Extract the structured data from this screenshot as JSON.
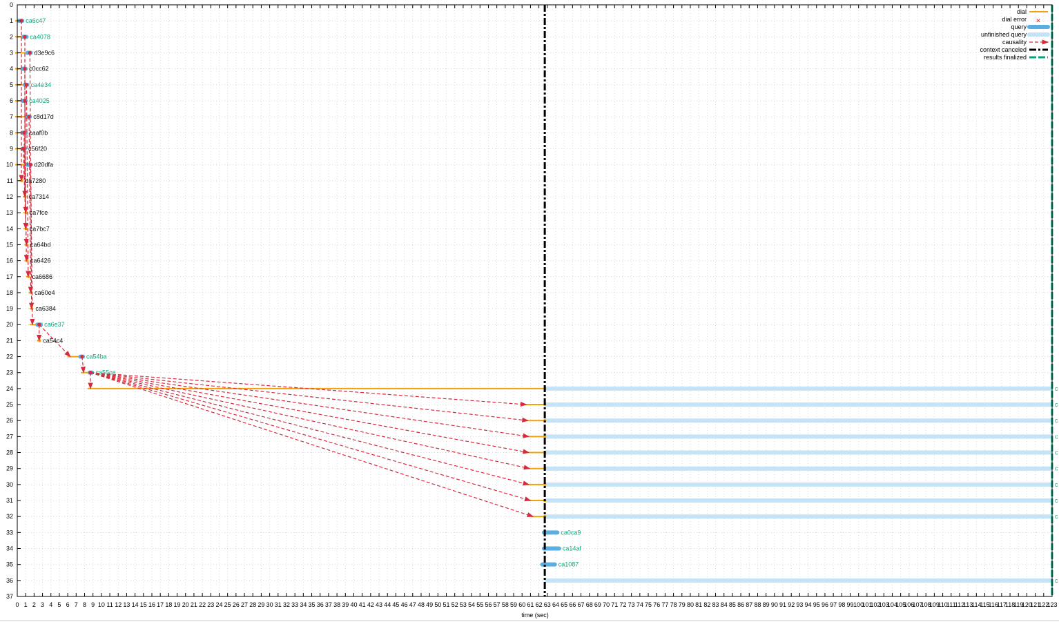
{
  "chart_data": {
    "type": "timeline",
    "xlabel": "time (sec)",
    "ylabel": "",
    "xlim": [
      0,
      123
    ],
    "ylim": [
      0,
      37
    ],
    "y_reversed": true,
    "grid": true,
    "legend_placement": "top-right",
    "legend": [
      {
        "key": "dial",
        "label": "dial"
      },
      {
        "key": "dial_error",
        "label": "dial error"
      },
      {
        "key": "query",
        "label": "query"
      },
      {
        "key": "unfinished",
        "label": "unfinished query"
      },
      {
        "key": "causality",
        "label": "causality"
      },
      {
        "key": "canceled",
        "label": "context canceled"
      },
      {
        "key": "finalized",
        "label": "results finalized"
      }
    ],
    "colors": {
      "dial": "#f0a30a",
      "dial_error": "#e8281e",
      "query": "#5aafe0",
      "unfinished": "#c5e3f6",
      "causality": "#d52b3c",
      "canceled": "#000000",
      "finalized": "#00a67e",
      "label_ok": "#12a67f",
      "label_plain": "#111111"
    },
    "context_canceled_at": 62.7,
    "results_finalized_at": 123,
    "rows": [
      {
        "row": 1,
        "label": "ca6c47",
        "ok": true,
        "dial": [
          0,
          0.4
        ],
        "query": [
          0.2,
          0.6
        ]
      },
      {
        "row": 2,
        "label": "ca4078",
        "ok": true,
        "dial": [
          0,
          0.8
        ],
        "query": [
          0.7,
          1.1
        ]
      },
      {
        "row": 3,
        "label": "d3e9c6",
        "ok": false,
        "dial": [
          0,
          1.2
        ],
        "query": [
          1.2,
          1.6
        ]
      },
      {
        "row": 4,
        "label": "c0cc62",
        "ok": false,
        "dial": [
          0,
          0.7
        ],
        "query": [
          0.6,
          1.0
        ]
      },
      {
        "row": 5,
        "label": "ca4e34",
        "ok": true,
        "dial": [
          0,
          1.0
        ],
        "query": [
          0.9,
          1.2
        ]
      },
      {
        "row": 6,
        "label": "ca4025",
        "ok": true,
        "dial": [
          0,
          0.7
        ],
        "query": [
          0.6,
          1.0
        ]
      },
      {
        "row": 7,
        "label": "c8d17d",
        "ok": false,
        "dial": [
          0,
          1.2
        ],
        "query": [
          1.1,
          1.5
        ]
      },
      {
        "row": 8,
        "label": "caaf0b",
        "ok": false,
        "dial": [
          0,
          0.7
        ],
        "query": [
          0.6,
          1.0
        ]
      },
      {
        "row": 9,
        "label": "c56f20",
        "ok": false,
        "dial": [
          0,
          0.6
        ],
        "query": [
          0.6,
          0.9
        ]
      },
      {
        "row": 10,
        "label": "d20dfa",
        "ok": false,
        "dial": [
          0,
          1.3
        ],
        "query": [
          1.2,
          1.6
        ]
      },
      {
        "row": 11,
        "label": "ca7280",
        "ok": false,
        "dial": [
          0.5,
          0.55
        ]
      },
      {
        "row": 12,
        "label": "ca7314",
        "ok": false,
        "dial": [
          0.9,
          0.95
        ]
      },
      {
        "row": 13,
        "label": "ca7fce",
        "ok": false,
        "dial": [
          1.0,
          1.05
        ]
      },
      {
        "row": 14,
        "label": "ca7bc7",
        "ok": false,
        "dial": [
          1.0,
          1.05
        ]
      },
      {
        "row": 15,
        "label": "ca64bd",
        "ok": false,
        "dial": [
          1.1,
          1.15
        ]
      },
      {
        "row": 16,
        "label": "ca6426",
        "ok": false,
        "dial": [
          1.1,
          1.15
        ]
      },
      {
        "row": 17,
        "label": "ca6686",
        "ok": false,
        "dial": [
          1.3,
          1.35
        ]
      },
      {
        "row": 18,
        "label": "ca60e4",
        "ok": false,
        "dial": [
          1.6,
          1.65
        ]
      },
      {
        "row": 19,
        "label": "ca6384",
        "ok": false,
        "dial": [
          1.7,
          1.75
        ]
      },
      {
        "row": 20,
        "label": "ca6e37",
        "ok": true,
        "dial": [
          1.7,
          2.5
        ],
        "query": [
          2.4,
          2.8
        ]
      },
      {
        "row": 21,
        "label": "ca54c4",
        "ok": false,
        "dial": [
          2.6,
          2.65
        ]
      },
      {
        "row": 22,
        "label": "ca54ba",
        "ok": true,
        "dial": [
          6.2,
          7.6
        ],
        "query": [
          7.5,
          7.8
        ]
      },
      {
        "row": 23,
        "label": "ca55ce",
        "ok": true,
        "dial": [
          7.8,
          8.8
        ],
        "query": [
          8.6,
          8.9
        ]
      },
      {
        "row": 24,
        "label": "c",
        "ok": true,
        "dial": [
          8.6,
          62.7
        ],
        "unfinished": [
          62.7,
          123
        ]
      },
      {
        "row": 25,
        "label": "c",
        "ok": true,
        "dial": [
          60.5,
          62.7
        ],
        "unfinished": [
          62.7,
          123
        ]
      },
      {
        "row": 26,
        "label": "c",
        "ok": true,
        "dial": [
          60.7,
          62.7
        ],
        "unfinished": [
          62.7,
          123
        ]
      },
      {
        "row": 27,
        "label": "c",
        "ok": true,
        "dial": [
          60.8,
          62.7
        ],
        "unfinished": [
          62.7,
          123
        ]
      },
      {
        "row": 28,
        "label": "c",
        "ok": true,
        "dial": [
          60.8,
          62.7
        ],
        "unfinished": [
          62.7,
          123
        ]
      },
      {
        "row": 29,
        "label": "c",
        "ok": true,
        "dial": [
          60.9,
          62.7
        ],
        "unfinished": [
          62.7,
          123
        ]
      },
      {
        "row": 30,
        "label": "c",
        "ok": true,
        "dial": [
          60.8,
          62.7
        ],
        "unfinished": [
          62.7,
          123
        ]
      },
      {
        "row": 31,
        "label": "c",
        "ok": true,
        "dial": [
          61.0,
          62.7
        ],
        "unfinished": [
          62.7,
          123
        ]
      },
      {
        "row": 32,
        "label": "c",
        "ok": true,
        "dial": [
          61.3,
          62.7
        ],
        "unfinished": [
          62.7,
          123
        ]
      },
      {
        "row": 33,
        "label": "ca0ca9",
        "ok": true,
        "query": [
          62.6,
          64.2
        ]
      },
      {
        "row": 34,
        "label": "ca14af",
        "ok": true,
        "query": [
          62.6,
          64.4
        ]
      },
      {
        "row": 35,
        "label": "ca1087",
        "ok": true,
        "query": [
          62.4,
          63.9
        ]
      },
      {
        "row": 36,
        "label": "c",
        "ok": true,
        "unfinished": [
          62.7,
          123
        ]
      }
    ],
    "causality": [
      [
        1,
        0.5,
        11,
        0.5
      ],
      [
        2,
        0.9,
        12,
        0.9
      ],
      [
        6,
        0.9,
        13,
        1.0
      ],
      [
        4,
        0.9,
        14,
        1.0
      ],
      [
        9,
        0.7,
        15,
        1.1
      ],
      [
        8,
        0.8,
        16,
        1.1
      ],
      [
        5,
        1.1,
        17,
        1.3
      ],
      [
        7,
        1.4,
        18,
        1.6
      ],
      [
        3,
        1.5,
        19,
        1.7
      ],
      [
        10,
        1.6,
        20,
        1.8
      ],
      [
        20,
        2.6,
        21,
        2.6
      ],
      [
        20,
        2.6,
        22,
        6.3
      ],
      [
        22,
        7.7,
        23,
        7.9
      ],
      [
        23,
        8.7,
        24,
        8.7
      ],
      [
        23,
        8.7,
        25,
        60.5
      ],
      [
        23,
        8.7,
        26,
        60.7
      ],
      [
        23,
        8.7,
        27,
        60.8
      ],
      [
        23,
        8.7,
        28,
        60.8
      ],
      [
        23,
        8.7,
        29,
        60.9
      ],
      [
        23,
        8.7,
        30,
        60.8
      ],
      [
        23,
        8.7,
        31,
        61.0
      ],
      [
        23,
        8.7,
        32,
        61.3
      ]
    ]
  }
}
